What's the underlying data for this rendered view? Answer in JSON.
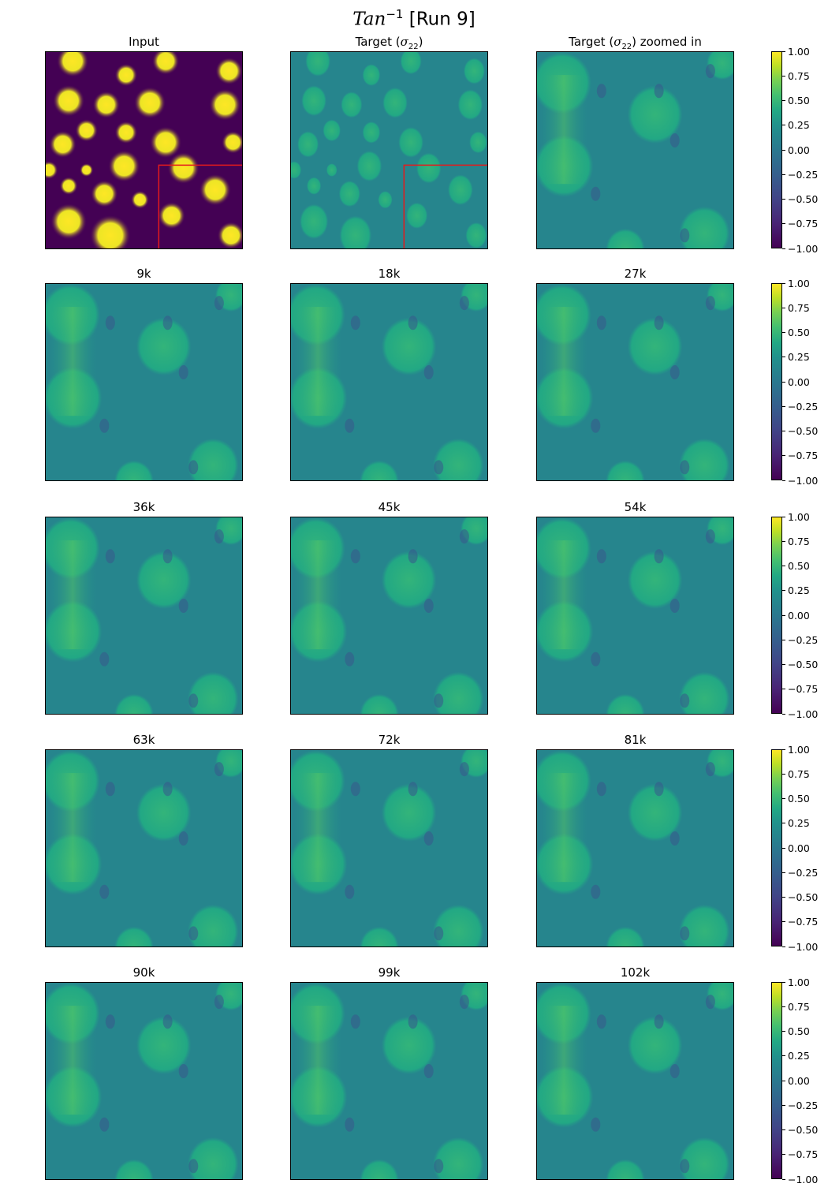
{
  "figure": {
    "title_prefix": "Tan",
    "title_exponent": "−1",
    "title_suffix": " [Run 9]"
  },
  "panels": [
    {
      "title": "Input",
      "kind": "input"
    },
    {
      "title": "Target (σ22)",
      "title_base": "Target (",
      "title_sym": "σ",
      "title_sub": "22",
      "title_end": ")",
      "kind": "target"
    },
    {
      "title": "Target (σ22) zoomed in",
      "title_base": "Target (",
      "title_sym": "σ",
      "title_sub": "22",
      "title_end": ") zoomed in",
      "kind": "zoom"
    },
    {
      "title": "9k",
      "kind": "pred"
    },
    {
      "title": "18k",
      "kind": "pred"
    },
    {
      "title": "27k",
      "kind": "pred"
    },
    {
      "title": "36k",
      "kind": "pred"
    },
    {
      "title": "45k",
      "kind": "pred"
    },
    {
      "title": "54k",
      "kind": "pred"
    },
    {
      "title": "63k",
      "kind": "pred"
    },
    {
      "title": "72k",
      "kind": "pred"
    },
    {
      "title": "81k",
      "kind": "pred"
    },
    {
      "title": "90k",
      "kind": "pred"
    },
    {
      "title": "99k",
      "kind": "pred"
    },
    {
      "title": "102k",
      "kind": "pred"
    }
  ],
  "colorbar": {
    "ticks": [
      "1.00",
      "0.75",
      "0.50",
      "0.25",
      "0.00",
      "−0.25",
      "−0.50",
      "−0.75",
      "−1.00"
    ],
    "range": [
      -1.0,
      1.0
    ],
    "colormap": "viridis"
  },
  "colors": {
    "viridis_low": "#440154",
    "viridis_mid": "#21918c",
    "viridis_high": "#fde725",
    "zoom_box": "#e41a1c"
  },
  "chart_data": {
    "type": "heatmap",
    "colorbar_range": [
      -1.0,
      1.0
    ],
    "iterations": [
      "9k",
      "18k",
      "27k",
      "36k",
      "45k",
      "54k",
      "63k",
      "72k",
      "81k",
      "90k",
      "99k",
      "102k"
    ]
  }
}
